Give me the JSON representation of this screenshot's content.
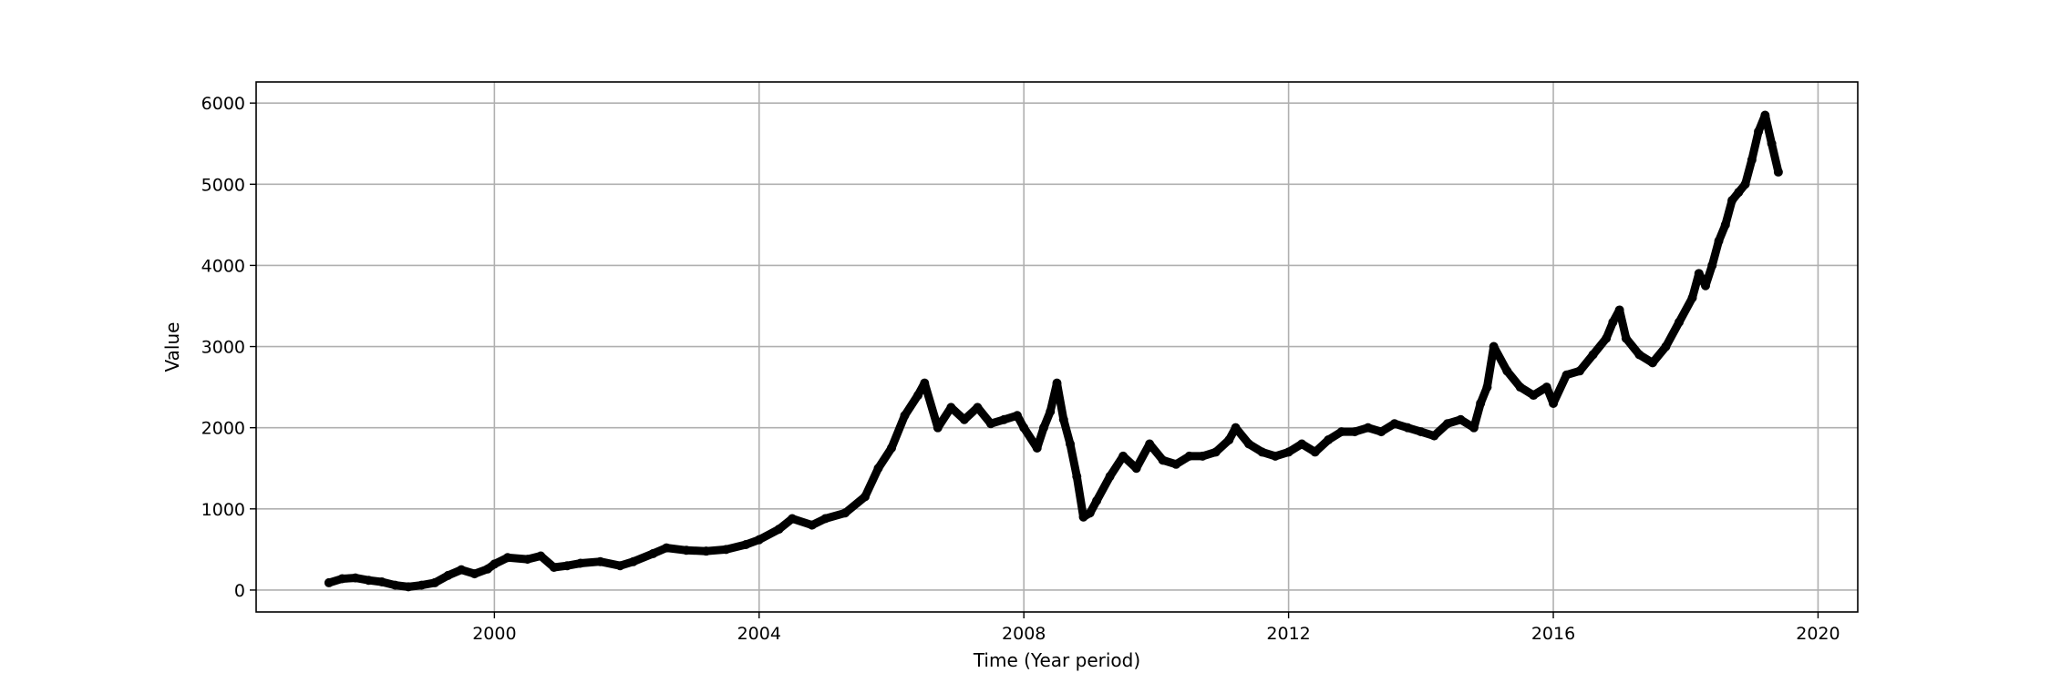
{
  "chart_data": {
    "type": "scatter",
    "xlabel": "Time (Year period)",
    "ylabel": "Value",
    "xlim": [
      1996.4,
      2020.6
    ],
    "ylim": [
      -270,
      6260
    ],
    "x_ticks": [
      {
        "value": 2000,
        "label": "2000"
      },
      {
        "value": 2004,
        "label": "2004"
      },
      {
        "value": 2008,
        "label": "2008"
      },
      {
        "value": 2012,
        "label": "2012"
      },
      {
        "value": 2016,
        "label": "2016"
      },
      {
        "value": 2020,
        "label": "2020"
      }
    ],
    "y_ticks": [
      {
        "value": 0,
        "label": "0"
      },
      {
        "value": 1000,
        "label": "1000"
      },
      {
        "value": 2000,
        "label": "2000"
      },
      {
        "value": 3000,
        "label": "3000"
      },
      {
        "value": 4000,
        "label": "4000"
      },
      {
        "value": 5000,
        "label": "5000"
      },
      {
        "value": 6000,
        "label": "6000"
      }
    ],
    "grid": true,
    "marker_color": "#000000",
    "grid_color": "#b0b0b0",
    "series": [
      {
        "x": [
          1997.5,
          1997.7,
          1997.9,
          1998.1,
          1998.3,
          1998.5,
          1998.7,
          1998.9,
          1999.1,
          1999.3,
          1999.5,
          1999.7,
          1999.9,
          2000.0,
          2000.2,
          2000.5,
          2000.7,
          2000.9,
          2001.1,
          2001.3,
          2001.6,
          2001.9,
          2002.1,
          2002.4,
          2002.6,
          2002.9,
          2003.2,
          2003.5,
          2003.8,
          2004.0,
          2004.3,
          2004.5,
          2004.8,
          2005.0,
          2005.3,
          2005.6,
          2005.8,
          2006.0,
          2006.2,
          2006.4,
          2006.5,
          2006.7,
          2006.9,
          2007.1,
          2007.3,
          2007.5,
          2007.7,
          2007.9,
          2008.0,
          2008.2,
          2008.3,
          2008.4,
          2008.5,
          2008.6,
          2008.7,
          2008.8,
          2008.9,
          2009.0,
          2009.1,
          2009.3,
          2009.5,
          2009.7,
          2009.9,
          2010.1,
          2010.3,
          2010.5,
          2010.7,
          2010.9,
          2011.1,
          2011.2,
          2011.4,
          2011.6,
          2011.8,
          2012.0,
          2012.2,
          2012.4,
          2012.6,
          2012.8,
          2013.0,
          2013.2,
          2013.4,
          2013.6,
          2013.8,
          2014.0,
          2014.2,
          2014.4,
          2014.6,
          2014.8,
          2014.9,
          2015.0,
          2015.1,
          2015.3,
          2015.5,
          2015.7,
          2015.9,
          2016.0,
          2016.2,
          2016.4,
          2016.6,
          2016.8,
          2016.9,
          2017.0,
          2017.1,
          2017.3,
          2017.5,
          2017.7,
          2017.9,
          2018.1,
          2018.2,
          2018.3,
          2018.4,
          2018.5,
          2018.6,
          2018.7,
          2018.8,
          2018.9,
          2019.0,
          2019.1,
          2019.2,
          2019.3,
          2019.4
        ],
        "y": [
          90,
          140,
          150,
          120,
          100,
          60,
          40,
          60,
          90,
          180,
          250,
          200,
          260,
          320,
          400,
          380,
          420,
          280,
          300,
          330,
          350,
          300,
          350,
          450,
          520,
          490,
          480,
          500,
          560,
          620,
          750,
          880,
          800,
          880,
          950,
          1150,
          1500,
          1750,
          2150,
          2400,
          2550,
          2000,
          2250,
          2100,
          2250,
          2050,
          2100,
          2150,
          2000,
          1750,
          2000,
          2200,
          2550,
          2100,
          1800,
          1400,
          900,
          950,
          1100,
          1400,
          1650,
          1500,
          1800,
          1600,
          1550,
          1650,
          1650,
          1700,
          1850,
          2000,
          1800,
          1700,
          1650,
          1700,
          1800,
          1700,
          1850,
          1950,
          1950,
          2000,
          1950,
          2050,
          2000,
          1950,
          1900,
          2050,
          2100,
          2000,
          2300,
          2500,
          3000,
          2700,
          2500,
          2400,
          2500,
          2300,
          2650,
          2700,
          2900,
          3100,
          3300,
          3450,
          3100,
          2900,
          2800,
          3000,
          3300,
          3600,
          3900,
          3750,
          4000,
          4300,
          4500,
          4800,
          4900,
          5000,
          5300,
          5650,
          5850,
          5500,
          5150
        ]
      }
    ]
  }
}
